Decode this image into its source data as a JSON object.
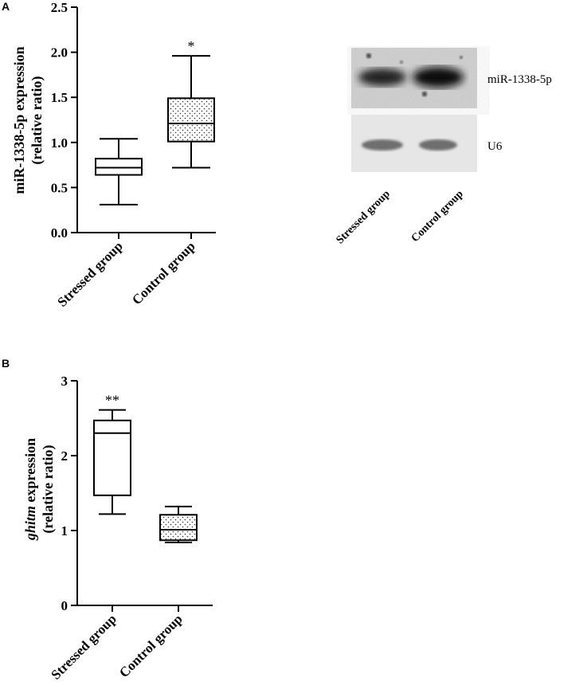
{
  "panels": {
    "a": {
      "letter": "A"
    },
    "b": {
      "letter": "B"
    }
  },
  "blot": {
    "band_labels": [
      "miR-1338-5p",
      "U6"
    ],
    "lane_labels": [
      "Stressed group",
      "Control group"
    ]
  },
  "chart_data": [
    {
      "type": "box",
      "panel": "A",
      "ylabel": "miR-1338-5p expression (relative ratio)",
      "ylabel_lines": [
        "miR-1338-5p expression",
        "(relative ratio)"
      ],
      "ylim": [
        0,
        2.5
      ],
      "yticks": [
        0.0,
        0.5,
        1.0,
        1.5,
        2.0,
        2.5
      ],
      "ytick_labels": [
        "0.0",
        "0.5",
        "1.0",
        "1.5",
        "2.0",
        "2.5"
      ],
      "categories": [
        "Stressed group",
        "Control group"
      ],
      "boxes": [
        {
          "name": "Stressed group",
          "min": 0.31,
          "q1": 0.64,
          "median": 0.72,
          "q3": 0.82,
          "max": 1.04,
          "fill": "plain",
          "annotation": ""
        },
        {
          "name": "Control group",
          "min": 0.72,
          "q1": 1.01,
          "median": 1.21,
          "q3": 1.49,
          "max": 1.96,
          "fill": "dotted",
          "annotation": "*"
        }
      ],
      "grid": false
    },
    {
      "type": "box",
      "panel": "B",
      "ylabel": "ghitm expression (relative ratio)",
      "ylabel_italic": "ghitm",
      "ylabel_rest": " expression",
      "ylabel_line2": "(relative ratio)",
      "ylim": [
        0,
        3
      ],
      "yticks": [
        0,
        1,
        2,
        3
      ],
      "ytick_labels": [
        "0",
        "1",
        "2",
        "3"
      ],
      "categories": [
        "Stressed group",
        "Control group"
      ],
      "boxes": [
        {
          "name": "Stressed group",
          "min": 1.22,
          "q1": 1.47,
          "median": 2.3,
          "q3": 2.47,
          "max": 2.61,
          "fill": "plain",
          "annotation": "**"
        },
        {
          "name": "Control group",
          "min": 0.84,
          "q1": 0.87,
          "median": 1.01,
          "q3": 1.21,
          "max": 1.32,
          "fill": "dotted",
          "annotation": ""
        }
      ],
      "grid": false
    }
  ]
}
